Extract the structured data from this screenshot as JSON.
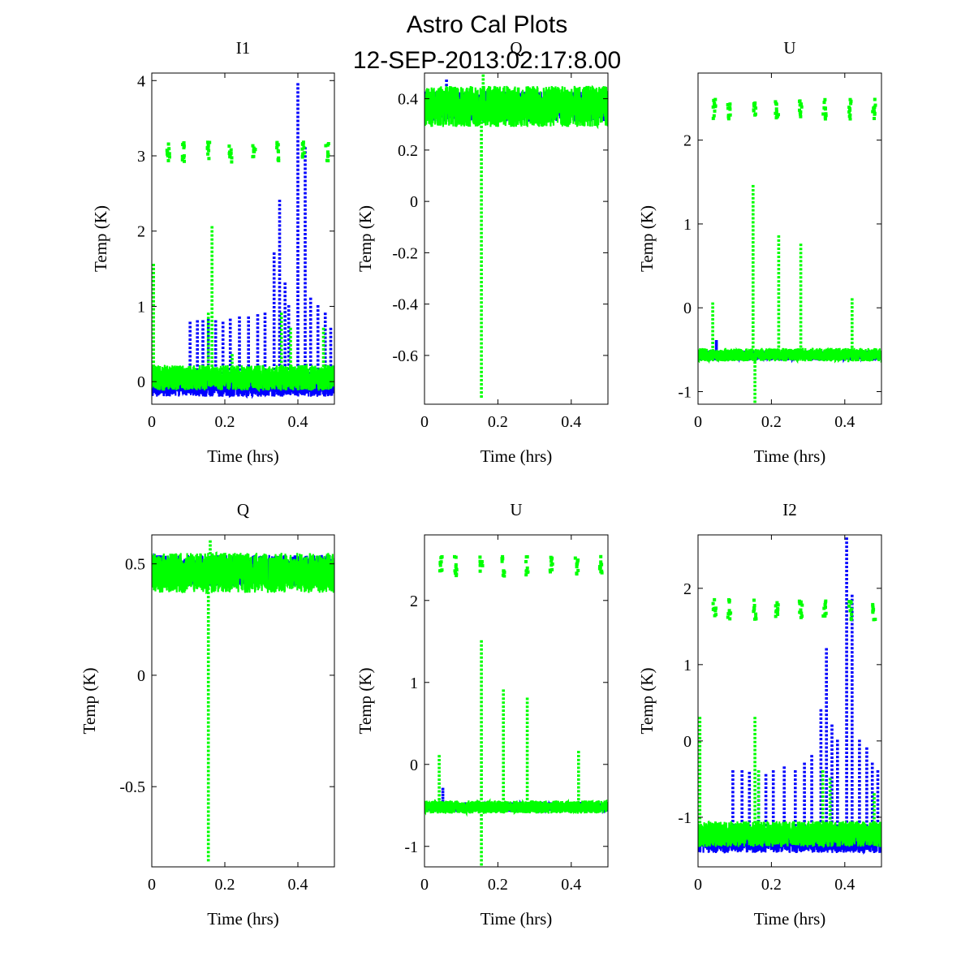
{
  "figure": {
    "title_line1": "Astro Cal Plots",
    "title_line2": "12-SEP-2013:02:17:8.00"
  },
  "colors": {
    "series_blue": "#0000ff",
    "series_green": "#00ff00",
    "axes": "#000000"
  },
  "chart_data": [
    {
      "type": "scatter",
      "title": "I1",
      "xlabel": "Time (hrs)",
      "ylabel": "Temp (K)",
      "xlim": [
        0,
        0.5
      ],
      "ylim": [
        -0.3,
        4.1
      ],
      "xticks": [
        0,
        0.2,
        0.4
      ],
      "xtick_labels": [
        "0",
        "0.2",
        "0.4"
      ],
      "yticks": [
        0,
        1,
        2,
        3,
        4
      ],
      "ytick_labels": [
        "0",
        "1",
        "2",
        "3",
        "4"
      ],
      "series": [
        {
          "color": "blue",
          "baseline": -0.05,
          "band": 0.15,
          "upper": null,
          "spikes": [
            [
              0.105,
              0.78
            ],
            [
              0.125,
              0.8
            ],
            [
              0.14,
              0.8
            ],
            [
              0.155,
              0.82
            ],
            [
              0.175,
              0.8
            ],
            [
              0.195,
              0.78
            ],
            [
              0.215,
              0.82
            ],
            [
              0.24,
              0.85
            ],
            [
              0.265,
              0.85
            ],
            [
              0.29,
              0.88
            ],
            [
              0.31,
              0.9
            ],
            [
              0.335,
              1.7
            ],
            [
              0.35,
              2.4
            ],
            [
              0.365,
              1.3
            ],
            [
              0.375,
              1.0
            ],
            [
              0.4,
              3.95
            ],
            [
              0.42,
              3.1
            ],
            [
              0.435,
              1.1
            ],
            [
              0.455,
              1.0
            ],
            [
              0.475,
              0.9
            ],
            [
              0.49,
              0.7
            ]
          ]
        },
        {
          "color": "green",
          "baseline": 0.05,
          "band": 0.17,
          "upper": 3.05,
          "spikes": [
            [
              0.005,
              1.55
            ],
            [
              0.155,
              0.9
            ],
            [
              0.165,
              2.05
            ],
            [
              0.22,
              0.35
            ],
            [
              0.355,
              0.9
            ],
            [
              0.38,
              0.7
            ],
            [
              0.47,
              0.7
            ]
          ]
        }
      ]
    },
    {
      "type": "scatter",
      "title": "Q",
      "xlabel": "Time (hrs)",
      "ylabel": "Temp (K)",
      "xlim": [
        0,
        0.5
      ],
      "ylim": [
        -0.79,
        0.5
      ],
      "xticks": [
        0,
        0.2,
        0.4
      ],
      "xtick_labels": [
        "0",
        "0.2",
        "0.4"
      ],
      "yticks": [
        -0.6,
        -0.4,
        -0.2,
        0,
        0.2,
        0.4
      ],
      "ytick_labels": [
        "-0.6",
        "-0.4",
        "-0.2",
        "0",
        "0.2",
        "0.4"
      ],
      "series": [
        {
          "color": "blue",
          "baseline": 0.37,
          "band": 0.06,
          "upper": null,
          "spikes": [
            [
              0.06,
              0.47
            ]
          ]
        },
        {
          "color": "green",
          "baseline": 0.37,
          "band": 0.08,
          "upper": null,
          "spikes": [
            [
              0.155,
              -0.76
            ],
            [
              0.16,
              0.49
            ]
          ]
        }
      ]
    },
    {
      "type": "scatter",
      "title": "U",
      "xlabel": "Time (hrs)",
      "ylabel": "Temp (K)",
      "xlim": [
        0,
        0.5
      ],
      "ylim": [
        -1.15,
        2.8
      ],
      "xticks": [
        0,
        0.2,
        0.4
      ],
      "xtick_labels": [
        "0",
        "0.2",
        "0.4"
      ],
      "yticks": [
        -1,
        0,
        1,
        2
      ],
      "ytick_labels": [
        "-1",
        "0",
        "1",
        "2"
      ],
      "series": [
        {
          "color": "blue",
          "baseline": -0.57,
          "band": 0.06,
          "upper": null,
          "spikes": [
            [
              0.05,
              -0.4
            ]
          ]
        },
        {
          "color": "green",
          "baseline": -0.56,
          "band": 0.08,
          "upper": 2.37,
          "spikes": [
            [
              0.155,
              -1.12
            ],
            [
              0.15,
              1.45
            ],
            [
              0.22,
              0.85
            ],
            [
              0.28,
              0.75
            ],
            [
              0.42,
              0.1
            ],
            [
              0.04,
              0.05
            ]
          ]
        }
      ]
    },
    {
      "type": "scatter",
      "title": "Q",
      "xlabel": "Time (hrs)",
      "ylabel": "Temp (K)",
      "xlim": [
        0,
        0.5
      ],
      "ylim": [
        -0.86,
        0.63
      ],
      "xticks": [
        0,
        0.2,
        0.4
      ],
      "xtick_labels": [
        "0",
        "0.2",
        "0.4"
      ],
      "yticks": [
        -0.5,
        0,
        0.5
      ],
      "ytick_labels": [
        "-0.5",
        "0",
        "0.5"
      ],
      "series": [
        {
          "color": "blue",
          "baseline": 0.47,
          "band": 0.07,
          "upper": null,
          "spikes": []
        },
        {
          "color": "green",
          "baseline": 0.46,
          "band": 0.09,
          "upper": null,
          "spikes": [
            [
              0.155,
              -0.83
            ],
            [
              0.16,
              0.6
            ]
          ]
        }
      ]
    },
    {
      "type": "scatter",
      "title": "U",
      "xlabel": "Time (hrs)",
      "ylabel": "Temp (K)",
      "xlim": [
        0,
        0.5
      ],
      "ylim": [
        -1.25,
        2.8
      ],
      "xticks": [
        0,
        0.2,
        0.4
      ],
      "xtick_labels": [
        "0",
        "0.2",
        "0.4"
      ],
      "yticks": [
        -1,
        0,
        1,
        2
      ],
      "ytick_labels": [
        "-1",
        "0",
        "1",
        "2"
      ],
      "series": [
        {
          "color": "blue",
          "baseline": -0.52,
          "band": 0.06,
          "upper": null,
          "spikes": [
            [
              0.05,
              -0.3
            ]
          ]
        },
        {
          "color": "green",
          "baseline": -0.52,
          "band": 0.08,
          "upper": 2.42,
          "spikes": [
            [
              0.155,
              -1.22
            ],
            [
              0.155,
              1.5
            ],
            [
              0.215,
              0.9
            ],
            [
              0.28,
              0.8
            ],
            [
              0.42,
              0.15
            ],
            [
              0.04,
              0.1
            ]
          ]
        }
      ]
    },
    {
      "type": "scatter",
      "title": "I2",
      "xlabel": "Time (hrs)",
      "ylabel": "Temp (K)",
      "xlim": [
        0,
        0.5
      ],
      "ylim": [
        -1.65,
        2.7
      ],
      "xticks": [
        0,
        0.2,
        0.4
      ],
      "xtick_labels": [
        "0",
        "0.2",
        "0.4"
      ],
      "yticks": [
        -1,
        0,
        1,
        2
      ],
      "ytick_labels": [
        "-1",
        "0",
        "1",
        "2"
      ],
      "series": [
        {
          "color": "blue",
          "baseline": -1.32,
          "band": 0.15,
          "upper": null,
          "spikes": [
            [
              0.095,
              -0.4
            ],
            [
              0.12,
              -0.4
            ],
            [
              0.14,
              -0.42
            ],
            [
              0.165,
              -0.4
            ],
            [
              0.185,
              -0.45
            ],
            [
              0.205,
              -0.4
            ],
            [
              0.235,
              -0.35
            ],
            [
              0.265,
              -0.4
            ],
            [
              0.29,
              -0.3
            ],
            [
              0.31,
              -0.2
            ],
            [
              0.335,
              0.4
            ],
            [
              0.35,
              1.2
            ],
            [
              0.365,
              0.2
            ],
            [
              0.38,
              0.0
            ],
            [
              0.405,
              2.65
            ],
            [
              0.42,
              1.9
            ],
            [
              0.44,
              0.0
            ],
            [
              0.46,
              -0.1
            ],
            [
              0.475,
              -0.3
            ],
            [
              0.49,
              -0.4
            ]
          ]
        },
        {
          "color": "green",
          "baseline": -1.22,
          "band": 0.17,
          "upper": 1.72,
          "spikes": [
            [
              0.005,
              0.3
            ],
            [
              0.155,
              0.3
            ],
            [
              0.165,
              -0.4
            ],
            [
              0.34,
              -0.4
            ],
            [
              0.36,
              -0.5
            ],
            [
              0.48,
              -0.7
            ]
          ]
        }
      ]
    }
  ]
}
